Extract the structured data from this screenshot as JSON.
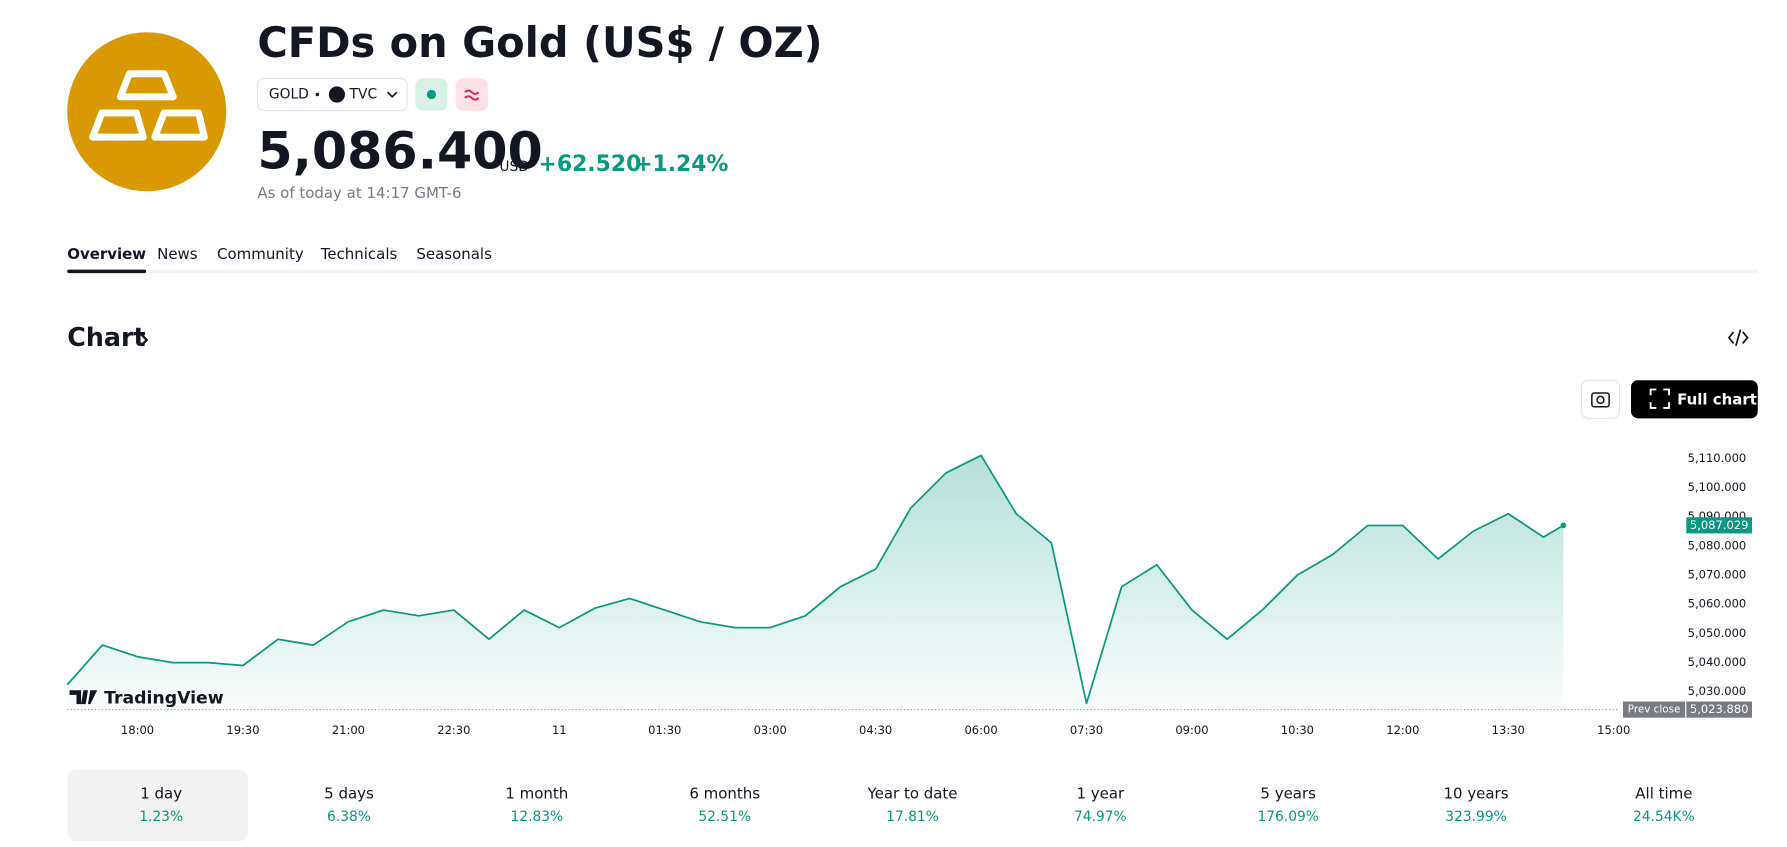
{
  "header": {
    "title": "CFDs on Gold (US$ / OZ)",
    "symbol": "GOLD",
    "exchange": "TVC",
    "price": "5,086.400",
    "currency": "USD",
    "change": "+62.520",
    "change_percent": "+1.24%",
    "timestamp": "As of today at 14:17 GMT-6"
  },
  "tabs": [
    "Overview",
    "News",
    "Community",
    "Technicals",
    "Seasonals"
  ],
  "section_title": "Chart",
  "full_chart_button": "Full chart",
  "brand": "TradingView",
  "chart_data": {
    "type": "line",
    "x": [
      "17:00",
      "17:30",
      "18:00",
      "18:30",
      "19:00",
      "19:30",
      "20:00",
      "20:30",
      "21:00",
      "21:30",
      "22:00",
      "22:30",
      "23:00",
      "23:30",
      "00:00",
      "00:30",
      "01:00",
      "01:30",
      "02:00",
      "02:30",
      "03:00",
      "03:30",
      "04:00",
      "04:30",
      "05:00",
      "05:30",
      "06:00",
      "06:30",
      "07:00",
      "07:30",
      "08:00",
      "08:30",
      "09:00",
      "09:30",
      "10:00",
      "10:30",
      "11:00",
      "11:30",
      "12:00",
      "12:30",
      "13:00",
      "13:30",
      "14:00",
      "14:17"
    ],
    "series": [
      {
        "name": "GOLD",
        "color": "#089981",
        "values": [
          5032.4,
          5046,
          5042,
          5040,
          5040,
          5039,
          5048,
          5046,
          5054,
          5058,
          5056,
          5058,
          5048,
          5058,
          5052,
          5058.6,
          5062,
          5058,
          5054,
          5052,
          5052,
          5056,
          5066,
          5072,
          5093,
          5105,
          5111,
          5091,
          5081,
          5026,
          5066,
          5073.5,
          5058,
          5048,
          5058,
          5070,
          5077,
          5087,
          5087,
          5075.5,
          5085,
          5091,
          5083,
          5087.029
        ],
        "value_labels": [
          null,
          null,
          null,
          null,
          null,
          null,
          null,
          null,
          null,
          null,
          null,
          null,
          null,
          null,
          null,
          null,
          null,
          null,
          null,
          null,
          null,
          null,
          null,
          null,
          null,
          null,
          null,
          null,
          null,
          null,
          null,
          null,
          null,
          null,
          null,
          null,
          null,
          null,
          null,
          null,
          null,
          null,
          null,
          "5,087.029"
        ]
      }
    ],
    "xticks": [
      "18:00",
      "19:30",
      "21:00",
      "22:30",
      "11",
      "01:30",
      "03:00",
      "04:30",
      "06:00",
      "07:30",
      "09:00",
      "10:30",
      "12:00",
      "13:30",
      "15:00"
    ],
    "ylim": [
      5023,
      5117
    ],
    "yticks": [
      {
        "value": 5030,
        "label": "5,030.000"
      },
      {
        "value": 5040,
        "label": "5,040.000"
      },
      {
        "value": 5050,
        "label": "5,050.000"
      },
      {
        "value": 5060,
        "label": "5,060.000"
      },
      {
        "value": 5070,
        "label": "5,070.000"
      },
      {
        "value": 5080,
        "label": "5,080.000"
      },
      {
        "value": 5090,
        "label": "5,090.000"
      },
      {
        "value": 5100,
        "label": "5,100.000"
      },
      {
        "value": 5110,
        "label": "5,110.000"
      }
    ],
    "prev_close": 5023.88,
    "prev_close_name": "Prev close",
    "prev_close_label": "5,023.880",
    "grid": false
  },
  "periods": [
    {
      "label": "1 day",
      "change": "1.23%"
    },
    {
      "label": "5 days",
      "change": "6.38%"
    },
    {
      "label": "1 month",
      "change": "12.83%"
    },
    {
      "label": "6 months",
      "change": "52.51%"
    },
    {
      "label": "Year to date",
      "change": "17.81%"
    },
    {
      "label": "1 year",
      "change": "74.97%"
    },
    {
      "label": "5 years",
      "change": "176.09%"
    },
    {
      "label": "10 years",
      "change": "323.99%"
    },
    {
      "label": "All time",
      "change": "24.54K%"
    }
  ]
}
